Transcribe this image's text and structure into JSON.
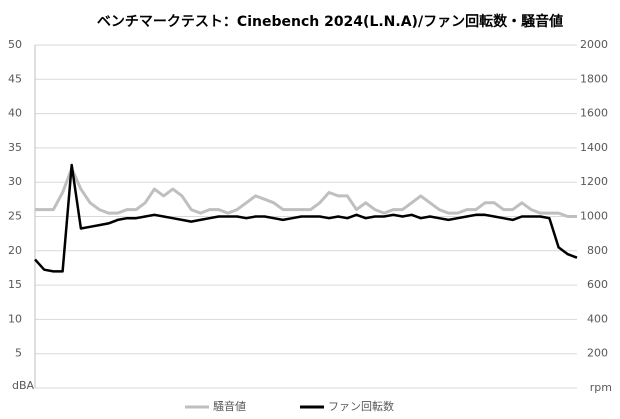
{
  "chart_data": {
    "type": "line",
    "title": "ベンチマークテスト：Cinebench 2024(L.N.A)/ファン回転数・騒音値",
    "ylabel": "dBA",
    "y2label": "rpm",
    "ylim": [
      0,
      50
    ],
    "yticks": [
      5,
      10,
      15,
      20,
      25,
      30,
      35,
      40,
      45,
      50
    ],
    "y2lim": [
      0,
      2000
    ],
    "y2ticks": [
      200,
      400,
      600,
      800,
      1000,
      1200,
      1400,
      1600,
      1800,
      2000
    ],
    "grid": true,
    "legend": "bottom",
    "series": [
      {
        "name": "騒音値",
        "color": "#bfbfbf",
        "values": [
          26,
          26,
          26,
          28.5,
          32,
          29,
          27,
          26,
          25.5,
          25.5,
          26,
          26,
          27,
          29,
          28,
          29,
          28,
          26,
          25.5,
          26,
          26,
          25.5,
          26,
          27,
          28,
          27.5,
          27,
          26,
          26,
          26,
          26,
          27,
          28.5,
          28,
          28,
          26,
          27,
          26,
          25.5,
          26,
          26,
          27,
          28,
          27,
          26,
          25.5,
          25.5,
          26,
          26,
          27,
          27,
          26,
          26,
          27,
          26,
          25.5,
          25.5,
          25.5,
          25,
          25
        ]
      },
      {
        "name": "ファン回転数",
        "color": "#000000",
        "axis": "y2",
        "values": [
          750,
          690,
          680,
          680,
          1300,
          930,
          940,
          950,
          960,
          980,
          990,
          990,
          1000,
          1010,
          1000,
          990,
          980,
          970,
          980,
          990,
          1000,
          1000,
          1000,
          990,
          1000,
          1000,
          990,
          980,
          990,
          1000,
          1000,
          1000,
          990,
          1000,
          990,
          1010,
          990,
          1000,
          1000,
          1010,
          1000,
          1010,
          990,
          1000,
          990,
          980,
          990,
          1000,
          1010,
          1010,
          1000,
          990,
          980,
          1000,
          1000,
          1000,
          990,
          820,
          780,
          760
        ]
      }
    ]
  }
}
